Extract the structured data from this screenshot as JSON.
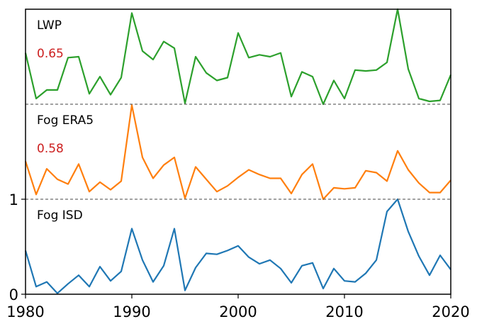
{
  "chart_data": {
    "type": "line",
    "title": "",
    "xlabel": "",
    "ylabel": "",
    "xlim": [
      1980,
      2020
    ],
    "x_ticks": [
      "1980",
      "1990",
      "2000",
      "2010",
      "2020"
    ],
    "y_ticks": [
      "0",
      "1"
    ],
    "grid": false,
    "layout": "three normalized series stacked vertically, separated by dashed lines",
    "x": [
      1980,
      1981,
      1982,
      1983,
      1984,
      1985,
      1986,
      1987,
      1988,
      1989,
      1990,
      1991,
      1992,
      1993,
      1994,
      1995,
      1996,
      1997,
      1998,
      1999,
      2000,
      2001,
      2002,
      2003,
      2004,
      2005,
      2006,
      2007,
      2008,
      2009,
      2010,
      2011,
      2012,
      2013,
      2014,
      2015,
      2016,
      2017,
      2018,
      2019,
      2020
    ],
    "series": [
      {
        "name": "LWP",
        "correlation": "0.65",
        "color": "#2ca02c",
        "offset": 2,
        "values": [
          0.54,
          0.06,
          0.15,
          0.15,
          0.49,
          0.5,
          0.11,
          0.29,
          0.1,
          0.28,
          0.96,
          0.56,
          0.47,
          0.66,
          0.59,
          0.01,
          0.5,
          0.33,
          0.25,
          0.28,
          0.75,
          0.49,
          0.52,
          0.5,
          0.54,
          0.08,
          0.34,
          0.29,
          0.0,
          0.25,
          0.06,
          0.36,
          0.35,
          0.36,
          0.44,
          1.0,
          0.37,
          0.06,
          0.03,
          0.04,
          0.31
        ]
      },
      {
        "name": "Fog ERA5",
        "correlation": "0.58",
        "color": "#ff7f0e",
        "offset": 1,
        "values": [
          0.4,
          0.05,
          0.32,
          0.21,
          0.16,
          0.37,
          0.08,
          0.18,
          0.1,
          0.19,
          0.99,
          0.44,
          0.22,
          0.36,
          0.44,
          0.01,
          0.34,
          0.21,
          0.08,
          0.14,
          0.23,
          0.31,
          0.26,
          0.22,
          0.22,
          0.06,
          0.26,
          0.37,
          0.0,
          0.12,
          0.11,
          0.12,
          0.3,
          0.28,
          0.19,
          0.51,
          0.31,
          0.17,
          0.07,
          0.07,
          0.2
        ]
      },
      {
        "name": "Fog ISD",
        "correlation": "",
        "color": "#1f77b4",
        "offset": 0,
        "values": [
          0.46,
          0.08,
          0.13,
          0.01,
          0.11,
          0.2,
          0.08,
          0.29,
          0.14,
          0.24,
          0.69,
          0.36,
          0.13,
          0.3,
          0.69,
          0.04,
          0.28,
          0.43,
          0.42,
          0.46,
          0.51,
          0.39,
          0.32,
          0.36,
          0.27,
          0.12,
          0.3,
          0.33,
          0.06,
          0.27,
          0.14,
          0.13,
          0.22,
          0.36,
          0.87,
          1.0,
          0.66,
          0.4,
          0.2,
          0.41,
          0.26
        ]
      }
    ],
    "correlation_color": "#cc1f1f"
  }
}
